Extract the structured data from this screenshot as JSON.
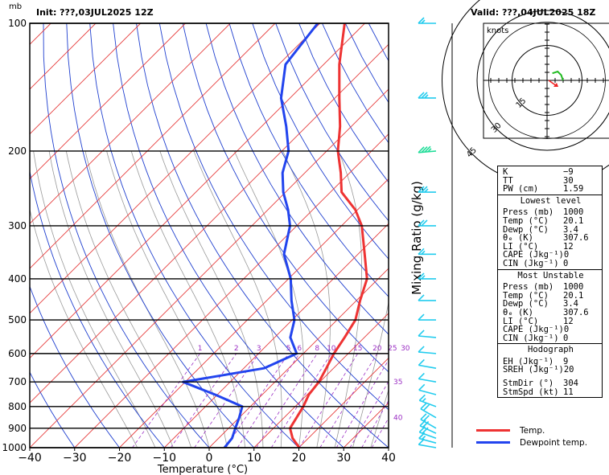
{
  "header": {
    "unit_label": "mb",
    "init": "Init: ???,03JUL2025  12Z",
    "valid": "Valid: ???,04JUL2025  18Z"
  },
  "colors": {
    "temp": "#ee3333",
    "dewp": "#2244ee",
    "isotherm": "#e63b3b",
    "dry_adiabat": "#1f3fcf",
    "moist_adiabat": "#999999",
    "mixing_ratio": "#9b2fc4",
    "barb": "#22ccee",
    "barb_upper": "#22dd99",
    "hodo_line": "#22bb22",
    "storm_motion": "#ee2222"
  },
  "chart_data": {
    "type": "line",
    "xlabel": "Temperature (°C)",
    "mixing_ratio_label": "Mixing Ratio (g/kg)",
    "xlim": [
      -40,
      40
    ],
    "x_ticks": [
      -40,
      -30,
      -20,
      -10,
      0,
      10,
      20,
      30,
      40
    ],
    "x_tick_labels": [
      "−40",
      "−30",
      "−20",
      "−10",
      "0",
      "10",
      "20",
      "30",
      "40"
    ],
    "pressure_range": [
      1000,
      100
    ],
    "p_log_scale": true,
    "p_ticks": [
      1000,
      900,
      800,
      700,
      600,
      500,
      400,
      300,
      200,
      100
    ],
    "p_tick_labels": [
      "1000",
      "900",
      "800",
      "700",
      "600",
      "500",
      "400",
      "300",
      "200",
      "100"
    ],
    "mixing_ratio_top_labels": [
      "1",
      "2",
      "3",
      "5",
      "6",
      "8",
      "10",
      "15",
      "20",
      "25",
      "30"
    ],
    "mixing_ratio_side_labels": [
      "35",
      "40"
    ],
    "series": [
      {
        "name": "Temp.",
        "key": "temp",
        "points": [
          [
            1000,
            20.1
          ],
          [
            950,
            16.5
          ],
          [
            900,
            13.7
          ],
          [
            850,
            12.8
          ],
          [
            800,
            11.8
          ],
          [
            750,
            10.4
          ],
          [
            700,
            9.8
          ],
          [
            650,
            8.4
          ],
          [
            600,
            6.8
          ],
          [
            550,
            5.6
          ],
          [
            500,
            4.1
          ],
          [
            450,
            0.8
          ],
          [
            400,
            -2.5
          ],
          [
            350,
            -8.5
          ],
          [
            300,
            -15.5
          ],
          [
            275,
            -20.5
          ],
          [
            250,
            -27.5
          ],
          [
            225,
            -32.0
          ],
          [
            200,
            -37.5
          ],
          [
            175,
            -42.5
          ],
          [
            150,
            -49
          ],
          [
            125,
            -56.5
          ],
          [
            100,
            -64.5
          ]
        ]
      },
      {
        "name": "Dewpoint temp.",
        "key": "dewp",
        "points": [
          [
            1000,
            3.4
          ],
          [
            950,
            3.0
          ],
          [
            900,
            1.5
          ],
          [
            850,
            0
          ],
          [
            800,
            -1.8
          ],
          [
            750,
            -10.5
          ],
          [
            700,
            -20.5
          ],
          [
            650,
            -5.5
          ],
          [
            600,
            -1.5
          ],
          [
            550,
            -6.5
          ],
          [
            500,
            -9.5
          ],
          [
            450,
            -14.5
          ],
          [
            400,
            -19.5
          ],
          [
            350,
            -26.5
          ],
          [
            300,
            -31.5
          ],
          [
            275,
            -35.5
          ],
          [
            250,
            -40.5
          ],
          [
            225,
            -45.0
          ],
          [
            200,
            -48.5
          ],
          [
            175,
            -54.5
          ],
          [
            150,
            -62
          ],
          [
            125,
            -68.5
          ],
          [
            100,
            -70.5
          ]
        ]
      }
    ]
  },
  "wind_barbs": [
    {
      "p": 1000,
      "dir": 280,
      "kt": 12
    },
    {
      "p": 975,
      "dir": 285,
      "kt": 15
    },
    {
      "p": 950,
      "dir": 290,
      "kt": 18
    },
    {
      "p": 925,
      "dir": 295,
      "kt": 20
    },
    {
      "p": 900,
      "dir": 300,
      "kt": 20
    },
    {
      "p": 850,
      "dir": 300,
      "kt": 18
    },
    {
      "p": 800,
      "dir": 290,
      "kt": 15
    },
    {
      "p": 750,
      "dir": 285,
      "kt": 12
    },
    {
      "p": 700,
      "dir": 280,
      "kt": 10
    },
    {
      "p": 650,
      "dir": 280,
      "kt": 10
    },
    {
      "p": 600,
      "dir": 275,
      "kt": 10
    },
    {
      "p": 550,
      "dir": 275,
      "kt": 10
    },
    {
      "p": 500,
      "dir": 270,
      "kt": 12
    },
    {
      "p": 450,
      "dir": 270,
      "kt": 12
    },
    {
      "p": 400,
      "dir": 270,
      "kt": 15
    },
    {
      "p": 350,
      "dir": 270,
      "kt": 15
    },
    {
      "p": 300,
      "dir": 270,
      "kt": 20
    },
    {
      "p": 250,
      "dir": 270,
      "kt": 25
    },
    {
      "p": 200,
      "dir": 265,
      "kt": 35
    },
    {
      "p": 150,
      "dir": 270,
      "kt": 25
    },
    {
      "p": 100,
      "dir": 270,
      "kt": 15
    }
  ],
  "hodograph": {
    "unit_label": "knots",
    "ring_labels": [
      "15",
      "30",
      "45"
    ],
    "hodo_points": [
      [
        3,
        4
      ],
      [
        6,
        5
      ],
      [
        8,
        3
      ],
      [
        9,
        0
      ]
    ],
    "storm_motion": {
      "dir": 304,
      "kt": 11
    }
  },
  "indices": {
    "top": [
      {
        "label": "K",
        "value": "−9"
      },
      {
        "label": "TT",
        "value": "30"
      },
      {
        "label": "PW (cm)",
        "value": "1.59"
      }
    ],
    "lowest_title": "Lowest level",
    "lowest": [
      {
        "label": "Press (mb)",
        "value": "1000"
      },
      {
        "label": "Temp (°C)",
        "value": "20.1"
      },
      {
        "label": "Dewp (°C)",
        "value": "3.4"
      },
      {
        "label": "θₑ (K)",
        "value": "307.6"
      },
      {
        "label": "LI (°C)",
        "value": "12"
      },
      {
        "label": "CAPE (Jkg⁻¹)",
        "value": "0"
      },
      {
        "label": "CIN (Jkg⁻¹)",
        "value": "0"
      }
    ],
    "unstable_title": "Most Unstable",
    "unstable": [
      {
        "label": "Press (mb)",
        "value": "1000"
      },
      {
        "label": "Temp (°C)",
        "value": "20.1"
      },
      {
        "label": "Dewp (°C)",
        "value": "3.4"
      },
      {
        "label": "θₑ (K)",
        "value": "307.6"
      },
      {
        "label": "LI (°C)",
        "value": "12"
      },
      {
        "label": "CAPE (Jkg⁻¹)",
        "value": "0"
      },
      {
        "label": "CIN (Jkg⁻¹)",
        "value": "0"
      }
    ],
    "hodo_title": "Hodograph",
    "hodo": [
      {
        "label": "EH (Jkg⁻¹)",
        "value": "9"
      },
      {
        "label": "SREH (Jkg⁻¹)",
        "value": "20"
      }
    ],
    "storm": [
      {
        "label": "StmDir (°)",
        "value": "304"
      },
      {
        "label": "StmSpd (kt)",
        "value": "11"
      }
    ]
  },
  "legend": [
    {
      "label": "Temp.",
      "key": "temp"
    },
    {
      "label": "Dewpoint temp.",
      "key": "dewp"
    }
  ]
}
